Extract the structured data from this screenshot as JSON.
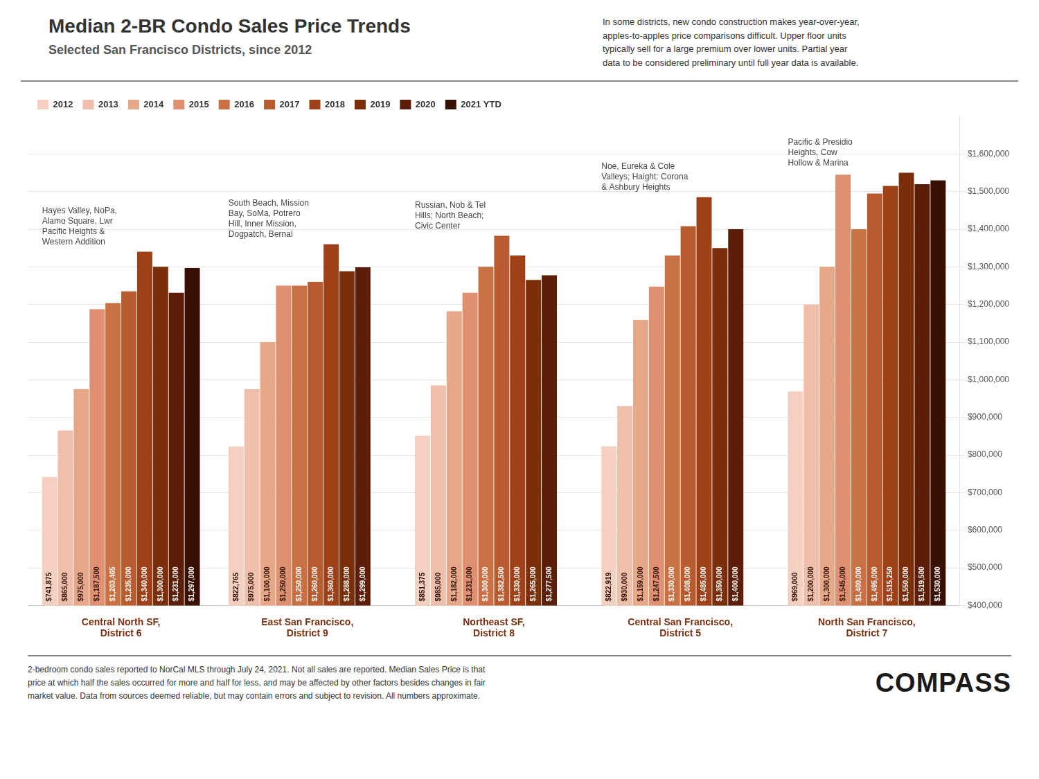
{
  "chart_data": {
    "type": "bar",
    "title": "Median 2-BR Condo Sales Price Trends",
    "subtitle": "Selected San Francisco Districts, since 2012",
    "categories": [
      "Central North SF,\nDistrict 6",
      "East San Francisco,\nDistrict 9",
      "Northeast SF,\nDistrict 8",
      "Central San Francisco,\nDistrict 5",
      "North San Francisco,\nDistrict 7"
    ],
    "series": [
      {
        "name": "2012",
        "color": "#f5cfc0",
        "values": [
          741875,
          822765,
          851375,
          822919,
          969000
        ],
        "value_labels": [
          "$741,875",
          "$822,765",
          "$851,375",
          "$822,919",
          "$969,000"
        ]
      },
      {
        "name": "2013",
        "color": "#f0bfac",
        "values": [
          865000,
          975000,
          985000,
          930000,
          1200000
        ],
        "value_labels": [
          "$865,000",
          "$975,000",
          "$985,000",
          "$930,000",
          "$1,200,000"
        ]
      },
      {
        "name": "2014",
        "color": "#e8a888",
        "values": [
          975000,
          1100000,
          1182000,
          1159000,
          1300000
        ],
        "value_labels": [
          "$975,000",
          "$1,100,000",
          "$1,182,000",
          "$1,159,000",
          "$1,300,000"
        ]
      },
      {
        "name": "2015",
        "color": "#de9070",
        "values": [
          1187500,
          1250000,
          1231000,
          1247500,
          1545000
        ],
        "value_labels": [
          "$1,187,500",
          "$1,250,000",
          "$1,231,000",
          "$1,247,500",
          "$1,545,000"
        ]
      },
      {
        "name": "2016",
        "color": "#c97045",
        "values": [
          1203465,
          1250000,
          1300000,
          1330000,
          1400000
        ],
        "value_labels": [
          "$1,203,465",
          "$1,250,000",
          "$1,300,000",
          "$1,330,000",
          "$1,400,000"
        ]
      },
      {
        "name": "2017",
        "color": "#b85c30",
        "values": [
          1235000,
          1260000,
          1382500,
          1408000,
          1495000
        ],
        "value_labels": [
          "$1,235,000",
          "$1,260,000",
          "$1,382,500",
          "$1,408,000",
          "$1,495,000"
        ]
      },
      {
        "name": "2018",
        "color": "#9e4018",
        "values": [
          1340000,
          1360000,
          1330000,
          1485000,
          1515250
        ],
        "value_labels": [
          "$1,340,000",
          "$1,360,000",
          "$1,330,000",
          "$1,485,000",
          "$1,515,250"
        ]
      },
      {
        "name": "2019",
        "color": "#7a2e0a",
        "values": [
          1300000,
          1288000,
          1265000,
          1350000,
          1550000
        ],
        "value_labels": [
          "$1,300,000",
          "$1,288,000",
          "$1,265,000",
          "$1,350,000",
          "$1,550,000"
        ]
      },
      {
        "name": "2020",
        "color": "#5c1e06",
        "values": [
          1231000,
          1299000,
          1277500,
          1400000,
          1519500
        ],
        "value_labels": [
          "$1,231,000",
          "$1,299,000",
          "$1,277,500",
          "$1,400,000",
          "$1,519,500"
        ]
      },
      {
        "name": "2021 YTD",
        "color": "#3a1002",
        "values": [
          1297000,
          null,
          null,
          null,
          1530000
        ],
        "value_labels": [
          "$1,297,000",
          null,
          null,
          null,
          "$1,530,000"
        ]
      }
    ],
    "ylim": [
      400000,
      1700000
    ],
    "yticks": [
      {
        "value": 400000,
        "label": "$400,000"
      },
      {
        "value": 500000,
        "label": "$500,000"
      },
      {
        "value": 600000,
        "label": "$600,000"
      },
      {
        "value": 700000,
        "label": "$700,000"
      },
      {
        "value": 800000,
        "label": "$800,000"
      },
      {
        "value": 900000,
        "label": "$900,000"
      },
      {
        "value": 1000000,
        "label": "$1,000,000"
      },
      {
        "value": 1100000,
        "label": "$1,100,000"
      },
      {
        "value": 1200000,
        "label": "$1,200,000"
      },
      {
        "value": 1300000,
        "label": "$1,300,000"
      },
      {
        "value": 1400000,
        "label": "$1,400,000"
      },
      {
        "value": 1500000,
        "label": "$1,500,000"
      },
      {
        "value": 1600000,
        "label": "$1,600,000"
      }
    ],
    "grid": true,
    "legend": "top",
    "data_labels": true,
    "annotations": [
      {
        "text": "Hayes Valley, NoPa,\nAlamo Square, Lwr\nPacific Heights &\nWestern Addition",
        "category": "Central North SF,\nDistrict 6"
      },
      {
        "text": "South Beach, Mission\nBay, SoMa, Potrero\nHill, Inner Mission,\nDogpatch, Bernal",
        "category": "East San Francisco,\nDistrict 9"
      },
      {
        "text": "Russian, Nob & Tel\nHills; North Beach;\nCivic Center",
        "category": "Northeast SF,\nDistrict 8"
      },
      {
        "text": "Noe, Eureka & Cole\nValleys; Haight: Corona\n& Ashbury Heights",
        "category": "Central San Francisco,\nDistrict 5"
      },
      {
        "text": "Pacific & Presidio\nHeights, Cow\nHollow & Marina",
        "category": "North San Francisco,\nDistrict 7"
      },
      {
        "text": "In some districts, new condo construction makes year-over-year,\napples-to-apples price comparisons difficult. Upper floor units\ntypically sell for a large premium over lower units. Partial year\ndata to be considered preliminary until full year data is available."
      },
      {
        "text": "2-bedroom condo sales reported to NorCal MLS through July 24, 2021. Not all sales are reported. Median Sales Price is that\nprice at which half the sales occurred for more and half for less, and may be affected by other factors besides changes in fair\nmarket value. Data from sources deemed reliable, but may contain errors and subject to revision.  All numbers approximate."
      },
      {
        "text": "COMPASS"
      }
    ]
  }
}
